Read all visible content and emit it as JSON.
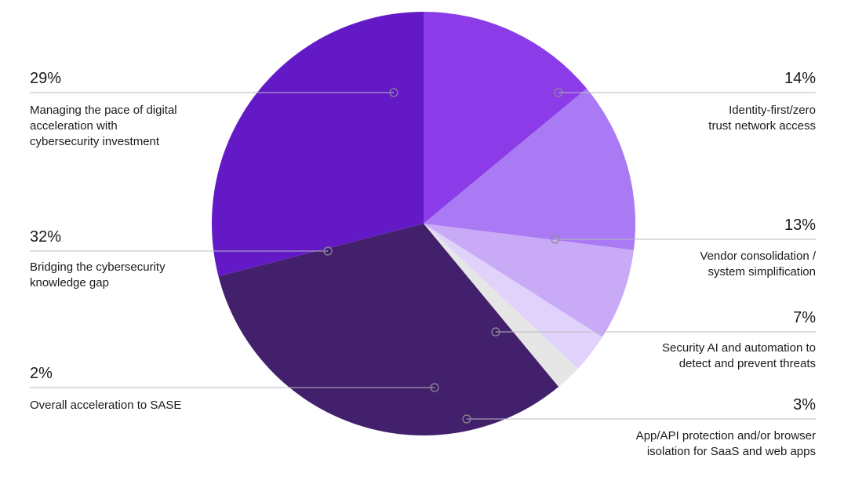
{
  "chart_data": {
    "type": "pie",
    "start_angle_deg": -90,
    "direction": "clockwise",
    "colors": {
      "dot_stroke": "#8c8c96",
      "leader": "#b9b9c4"
    },
    "slices": [
      {
        "key": "identity",
        "value": 14,
        "percent_label": "14%",
        "label_lines": [
          "Identity-first/zero",
          "trust network access"
        ],
        "color": "#8b3ce8",
        "label_side": "right"
      },
      {
        "key": "vendor",
        "value": 13,
        "percent_label": "13%",
        "label_lines": [
          "Vendor consolidation /",
          "system simplification"
        ],
        "color": "#a97af3",
        "label_side": "right"
      },
      {
        "key": "security-ai",
        "value": 7,
        "percent_label": "7%",
        "label_lines": [
          "Security AI and automation to",
          "detect and prevent threats"
        ],
        "color": "#c8aaf7",
        "label_side": "right"
      },
      {
        "key": "app-api",
        "value": 3,
        "percent_label": "3%",
        "label_lines": [
          "App/API protection and/or browser",
          "isolation for SaaS and web apps"
        ],
        "color": "#e0d2fb",
        "label_side": "right"
      },
      {
        "key": "sase",
        "value": 2,
        "percent_label": "2%",
        "label_lines": [
          "Overall acceleration to SASE"
        ],
        "color": "#e6e6e6",
        "label_side": "left"
      },
      {
        "key": "knowledge-gap",
        "value": 32,
        "percent_label": "32%",
        "label_lines": [
          "Bridging the cybersecurity",
          "knowledge gap"
        ],
        "color": "#43206b",
        "label_side": "left"
      },
      {
        "key": "digital-pace",
        "value": 29,
        "percent_label": "29%",
        "label_lines": [
          "Managing the pace of digital",
          "acceleration with",
          "cybersecurity investment"
        ],
        "color": "#6419c6",
        "label_side": "left"
      }
    ]
  }
}
